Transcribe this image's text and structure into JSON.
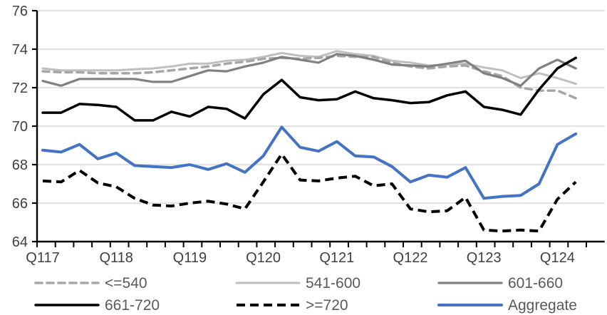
{
  "chart_data": {
    "type": "line",
    "title": "",
    "xlabel": "",
    "ylabel": "",
    "ylim": [
      64,
      76
    ],
    "ytick_step": 2,
    "ytick_labels": [
      "64",
      "66",
      "68",
      "70",
      "72",
      "74",
      "76"
    ],
    "x_tick_labels": [
      "Q117",
      "Q118",
      "Q119",
      "Q120",
      "Q121",
      "Q122",
      "Q123",
      "Q124"
    ],
    "x_tick_point_indices": [
      0,
      4,
      8,
      12,
      16,
      20,
      24,
      28
    ],
    "points_per_series": 30,
    "grid": "horizontal",
    "gridline_color": "#d9d9d9",
    "axis_color": "#000000",
    "axis_label_color": "#404040",
    "legend_position": "bottom",
    "legend_text_color": "#595959",
    "series": [
      {
        "name": "541-600",
        "color": "#bfbfbf",
        "dash": "solid",
        "width": 3,
        "values": [
          73.0,
          72.9,
          72.9,
          72.9,
          72.9,
          72.95,
          73.0,
          73.1,
          73.25,
          73.25,
          73.4,
          73.45,
          73.6,
          73.8,
          73.65,
          73.6,
          73.9,
          73.75,
          73.65,
          73.4,
          73.3,
          73.15,
          73.2,
          73.25,
          73.05,
          72.9,
          72.5,
          72.75,
          72.5,
          72.2
        ]
      },
      {
        "name": "<=540",
        "color": "#a6a6a6",
        "dash": "dashed",
        "width": 3.5,
        "values": [
          72.85,
          72.8,
          72.8,
          72.75,
          72.75,
          72.75,
          72.8,
          72.9,
          73.0,
          73.1,
          73.25,
          73.35,
          73.5,
          73.55,
          73.5,
          73.55,
          73.65,
          73.6,
          73.6,
          73.3,
          73.1,
          73.0,
          73.1,
          73.15,
          72.85,
          72.6,
          72.0,
          71.85,
          71.85,
          71.45
        ]
      },
      {
        "name": "601-660",
        "color": "#808080",
        "dash": "solid",
        "width": 3.2,
        "values": [
          72.35,
          72.1,
          72.45,
          72.45,
          72.45,
          72.45,
          72.3,
          72.3,
          72.6,
          72.9,
          72.85,
          73.1,
          73.3,
          73.6,
          73.45,
          73.3,
          73.75,
          73.65,
          73.45,
          73.2,
          73.15,
          73.1,
          73.25,
          73.4,
          72.75,
          72.5,
          72.1,
          73.0,
          73.45,
          73.0
        ]
      },
      {
        "name": "661-720",
        "color": "#000000",
        "dash": "solid",
        "width": 3.5,
        "values": [
          70.7,
          70.7,
          71.15,
          71.1,
          71.0,
          70.3,
          70.3,
          70.75,
          70.5,
          71.0,
          70.9,
          70.4,
          71.65,
          72.4,
          71.5,
          71.35,
          71.4,
          71.8,
          71.45,
          71.35,
          71.2,
          71.25,
          71.6,
          71.8,
          71.0,
          70.85,
          70.6,
          71.9,
          73.0,
          73.55
        ]
      },
      {
        "name": ">=720",
        "color": "#000000",
        "dash": "dashed",
        "width": 4,
        "values": [
          67.15,
          67.1,
          67.7,
          67.05,
          66.85,
          66.25,
          65.9,
          65.85,
          66.0,
          66.1,
          65.95,
          65.7,
          67.1,
          68.55,
          67.2,
          67.15,
          67.3,
          67.4,
          66.9,
          67.0,
          65.7,
          65.55,
          65.6,
          66.3,
          64.6,
          64.55,
          64.6,
          64.55,
          66.2,
          67.1
        ]
      },
      {
        "name": "Aggregate",
        "color": "#4472c4",
        "dash": "solid",
        "width": 4,
        "values": [
          68.75,
          68.65,
          69.05,
          68.3,
          68.6,
          67.95,
          67.9,
          67.85,
          68.0,
          67.75,
          68.05,
          67.6,
          68.45,
          69.95,
          68.9,
          68.7,
          69.2,
          68.45,
          68.4,
          67.9,
          67.1,
          67.45,
          67.35,
          67.85,
          66.25,
          66.35,
          66.4,
          67.0,
          69.05,
          69.6
        ]
      }
    ],
    "legend_entries": [
      {
        "label": "<=540",
        "series": "<=540"
      },
      {
        "label": "541-600",
        "series": "541-600"
      },
      {
        "label": "601-660",
        "series": "601-660"
      },
      {
        "label": "661-720",
        "series": "661-720"
      },
      {
        "label": ">=720",
        "series": ">=720"
      },
      {
        "label": "Aggregate",
        "series": "Aggregate"
      }
    ]
  }
}
